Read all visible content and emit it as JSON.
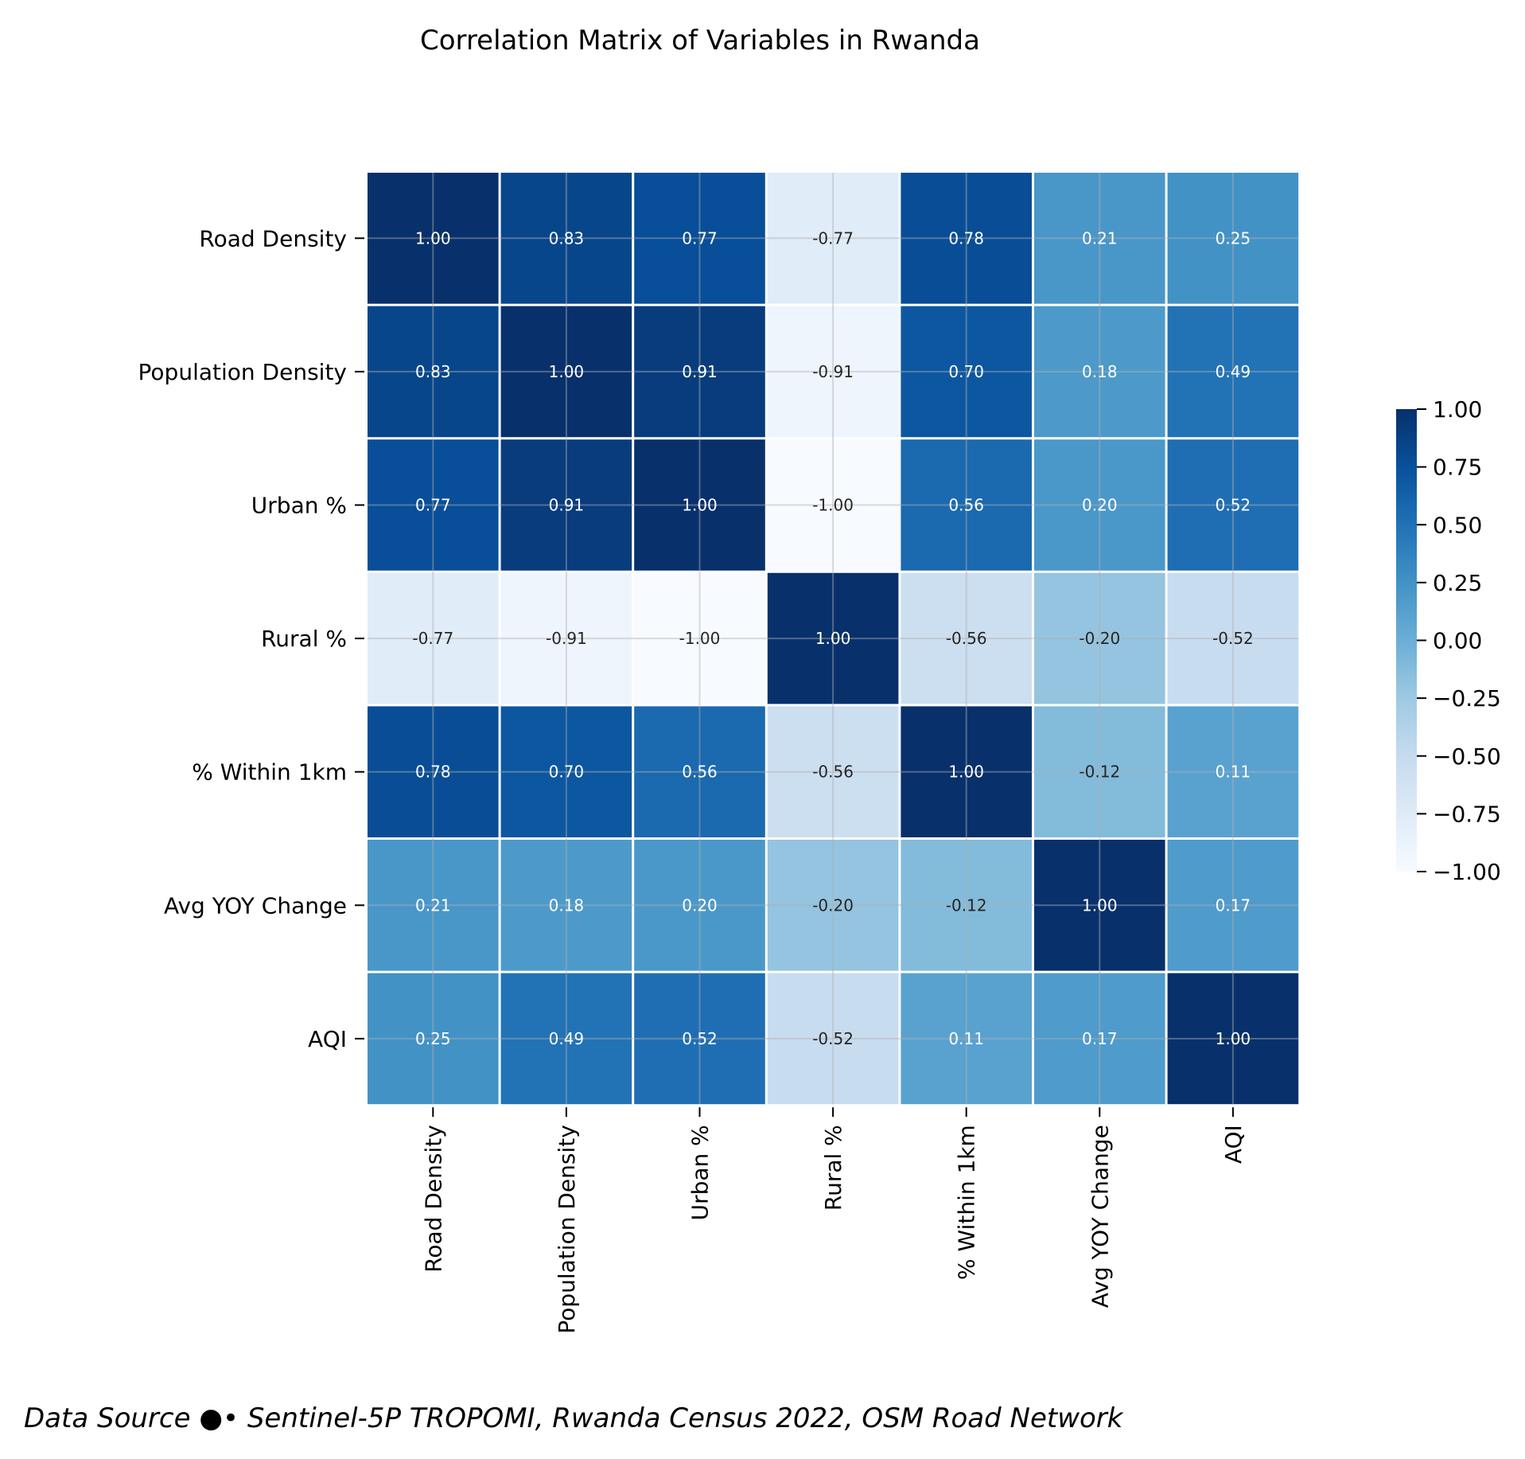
{
  "chart_data": {
    "type": "heatmap",
    "title": "Correlation Matrix of Variables in Rwanda",
    "row_labels": [
      "Road Density",
      "Population Density",
      "Urban %",
      "Rural %",
      "% Within 1km",
      "Avg YOY Change",
      "AQI"
    ],
    "col_labels": [
      "Road Density",
      "Population Density",
      "Urban %",
      "Rural %",
      "% Within 1km",
      "Avg YOY Change",
      "AQI"
    ],
    "values": [
      [
        1.0,
        0.83,
        0.77,
        -0.77,
        0.78,
        0.21,
        0.25
      ],
      [
        0.83,
        1.0,
        0.91,
        -0.91,
        0.7,
        0.18,
        0.49
      ],
      [
        0.77,
        0.91,
        1.0,
        -1.0,
        0.56,
        0.2,
        0.52
      ],
      [
        -0.77,
        -0.91,
        -1.0,
        1.0,
        -0.56,
        -0.2,
        -0.52
      ],
      [
        0.78,
        0.7,
        0.56,
        -0.56,
        1.0,
        -0.12,
        0.11
      ],
      [
        0.21,
        0.18,
        0.2,
        -0.2,
        -0.12,
        1.0,
        0.17
      ],
      [
        0.25,
        0.49,
        0.52,
        -0.52,
        0.11,
        0.17,
        1.0
      ]
    ],
    "cell_labels": [
      [
        "1.00",
        "0.83",
        "0.77",
        "-0.77",
        "0.78",
        "0.21",
        "0.25"
      ],
      [
        "0.83",
        "1.00",
        "0.91",
        "-0.91",
        "0.70",
        "0.18",
        "0.49"
      ],
      [
        "0.77",
        "0.91",
        "1.00",
        "-1.00",
        "0.56",
        "0.20",
        "0.52"
      ],
      [
        "-0.77",
        "-0.91",
        "-1.00",
        "1.00",
        "-0.56",
        "-0.20",
        "-0.52"
      ],
      [
        "0.78",
        "0.70",
        "0.56",
        "-0.56",
        "1.00",
        "-0.12",
        "0.11"
      ],
      [
        "0.21",
        "0.18",
        "0.20",
        "-0.20",
        "-0.12",
        "1.00",
        "0.17"
      ],
      [
        "0.25",
        "0.49",
        "0.52",
        "-0.52",
        "0.11",
        "0.17",
        "1.00"
      ]
    ],
    "colormap": "Blues",
    "vmin": -1.0,
    "vmax": 1.0,
    "colorbar_ticks": [
      1.0,
      0.75,
      0.5,
      0.25,
      0.0,
      -0.25,
      -0.5,
      -0.75,
      -1.0
    ],
    "colorbar_tick_labels": [
      "1.00",
      "0.75",
      "0.50",
      "0.25",
      "0.00",
      "−0.25",
      "−0.50",
      "−0.75",
      "−1.00"
    ],
    "colorbar_location": "right",
    "grid": true,
    "xlabel": "",
    "ylabel": ""
  },
  "source_note": "Data Source ●• Sentinel-5P TROPOMI, Rwanda Census 2022, OSM Road Network",
  "colors": {
    "cmap_stops": [
      "#f7fbff",
      "#deebf7",
      "#c6dbef",
      "#9ecae1",
      "#6baed6",
      "#4292c6",
      "#2171b5",
      "#08519c",
      "#08306b"
    ],
    "text_light": "#ffffff",
    "text_dark": "#262626",
    "grid": "#b0b0b0"
  }
}
